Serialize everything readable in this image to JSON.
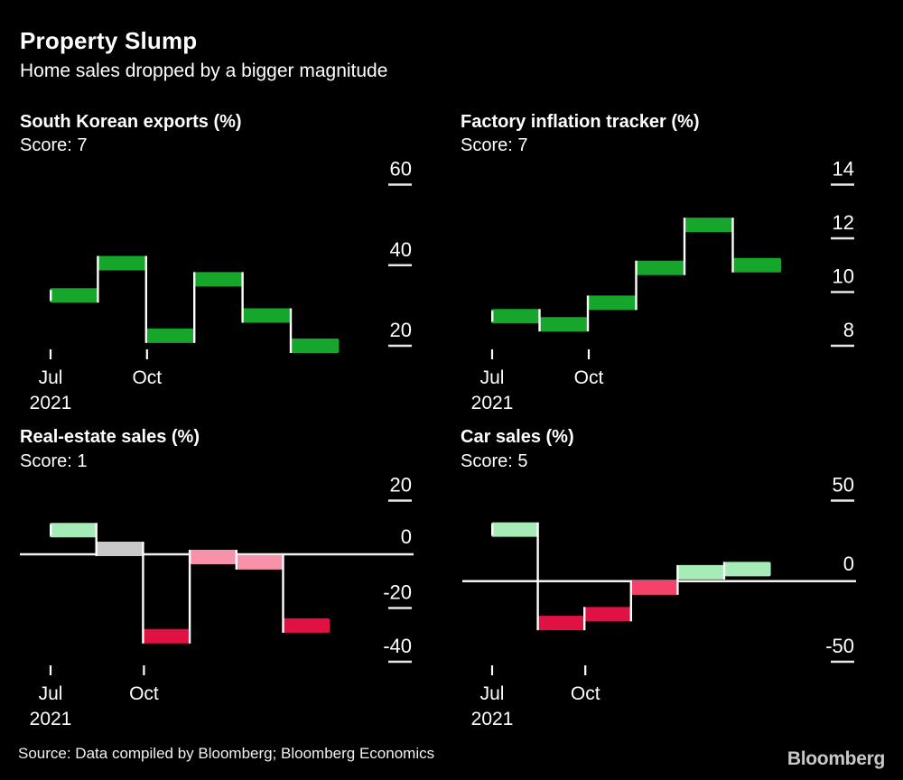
{
  "header": {
    "title": "Property Slump",
    "subtitle": "Home sales dropped by a bigger magnitude"
  },
  "footer": {
    "source": "Source: Data compiled by Bloomberg; Bloomberg Economics",
    "logo": "Bloomberg"
  },
  "colors": {
    "background": "#000000",
    "text": "#ffffff",
    "axis": "#e8e8e8",
    "zero_line": "#f2f2f2",
    "connector": "#ffffff",
    "logo": "#c9c9c9",
    "green": "#16a62c",
    "mint": "#a6ecb7",
    "gray": "#c9c9c9",
    "pink": "#f892aa",
    "crimson": "#e01244",
    "rose": "#f6426a"
  },
  "chart_data": [
    {
      "type": "step",
      "title": "South Korean exports (%)",
      "score": "Score: 7",
      "values": [
        32.5,
        40.5,
        22.5,
        36.5,
        27.5,
        20
      ],
      "segment_colors": [
        "green",
        "green",
        "green",
        "green",
        "green",
        "green"
      ],
      "y_ticks": [
        60,
        40,
        20
      ],
      "ylim": [
        15,
        62
      ],
      "zero_line": false,
      "x_ticks": [
        {
          "label_top": "Jul",
          "label_bottom": "2021",
          "at_segment": 0
        },
        {
          "label_top": "Oct",
          "label_bottom": "",
          "at_segment": 2
        }
      ]
    },
    {
      "type": "step",
      "title": "Factory inflation tracker (%)",
      "score": "Score: 7",
      "values": [
        9.1,
        8.8,
        9.6,
        10.9,
        12.5,
        11
      ],
      "segment_colors": [
        "green",
        "green",
        "green",
        "green",
        "green",
        "green"
      ],
      "y_ticks": [
        14,
        12,
        10,
        8
      ],
      "ylim": [
        7.5,
        14
      ],
      "zero_line": false,
      "x_ticks": [
        {
          "label_top": "Jul",
          "label_bottom": "2021",
          "at_segment": 0
        },
        {
          "label_top": "Oct",
          "label_bottom": "",
          "at_segment": 2
        }
      ]
    },
    {
      "type": "step",
      "title": "Real-estate sales (%)",
      "score": "Score: 1",
      "values": [
        9,
        2,
        -30.5,
        -1,
        -3,
        -26.5
      ],
      "segment_colors": [
        "mint",
        "gray",
        "crimson",
        "pink",
        "pink",
        "crimson"
      ],
      "y_ticks": [
        20,
        0,
        -20,
        -40
      ],
      "ylim": [
        -45,
        22
      ],
      "zero_line": true,
      "x_ticks": [
        {
          "label_top": "Jul",
          "label_bottom": "2021",
          "at_segment": 0
        },
        {
          "label_top": "Oct",
          "label_bottom": "",
          "at_segment": 2
        }
      ]
    },
    {
      "type": "step",
      "title": "Car sales (%)",
      "score": "Score: 5",
      "values": [
        32,
        -26,
        -20.5,
        -4,
        5.5,
        7.5
      ],
      "segment_colors": [
        "mint",
        "crimson",
        "crimson",
        "rose",
        "mint",
        "mint"
      ],
      "y_ticks": [
        50,
        0,
        -50
      ],
      "ylim": [
        -55,
        55
      ],
      "zero_line": true,
      "x_ticks": [
        {
          "label_top": "Jul",
          "label_bottom": "2021",
          "at_segment": 0
        },
        {
          "label_top": "Oct",
          "label_bottom": "",
          "at_segment": 2
        }
      ]
    }
  ]
}
